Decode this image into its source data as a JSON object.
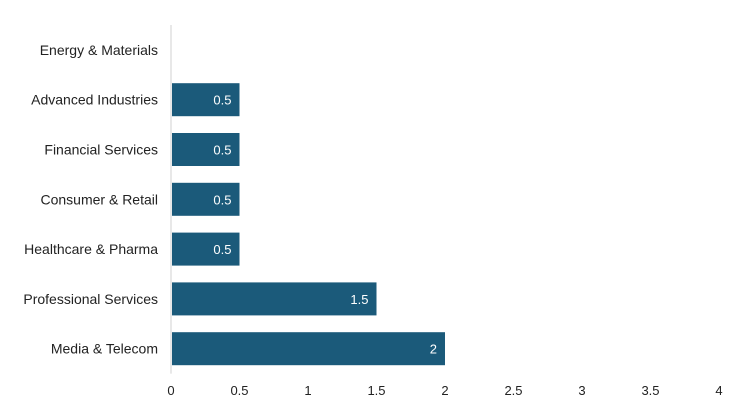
{
  "chart_data": {
    "type": "bar",
    "orientation": "horizontal",
    "categories": [
      "Energy & Materials",
      "Advanced Industries",
      "Financial Services",
      "Consumer & Retail",
      "Healthcare & Pharma",
      "Professional Services",
      "Media & Telecom"
    ],
    "values": [
      0,
      0.5,
      0.5,
      0.5,
      0.5,
      1.5,
      2
    ],
    "data_labels": [
      "",
      "0.5",
      "0.5",
      "0.5",
      "0.5",
      "1.5",
      "2"
    ],
    "x_ticks": [
      "0",
      "0.5",
      "1",
      "1.5",
      "2",
      "2.5",
      "3",
      "3.5",
      "4"
    ],
    "xlim": [
      0,
      4
    ],
    "bar_color": "#1b5a7a",
    "grid": false,
    "legend": "none"
  }
}
